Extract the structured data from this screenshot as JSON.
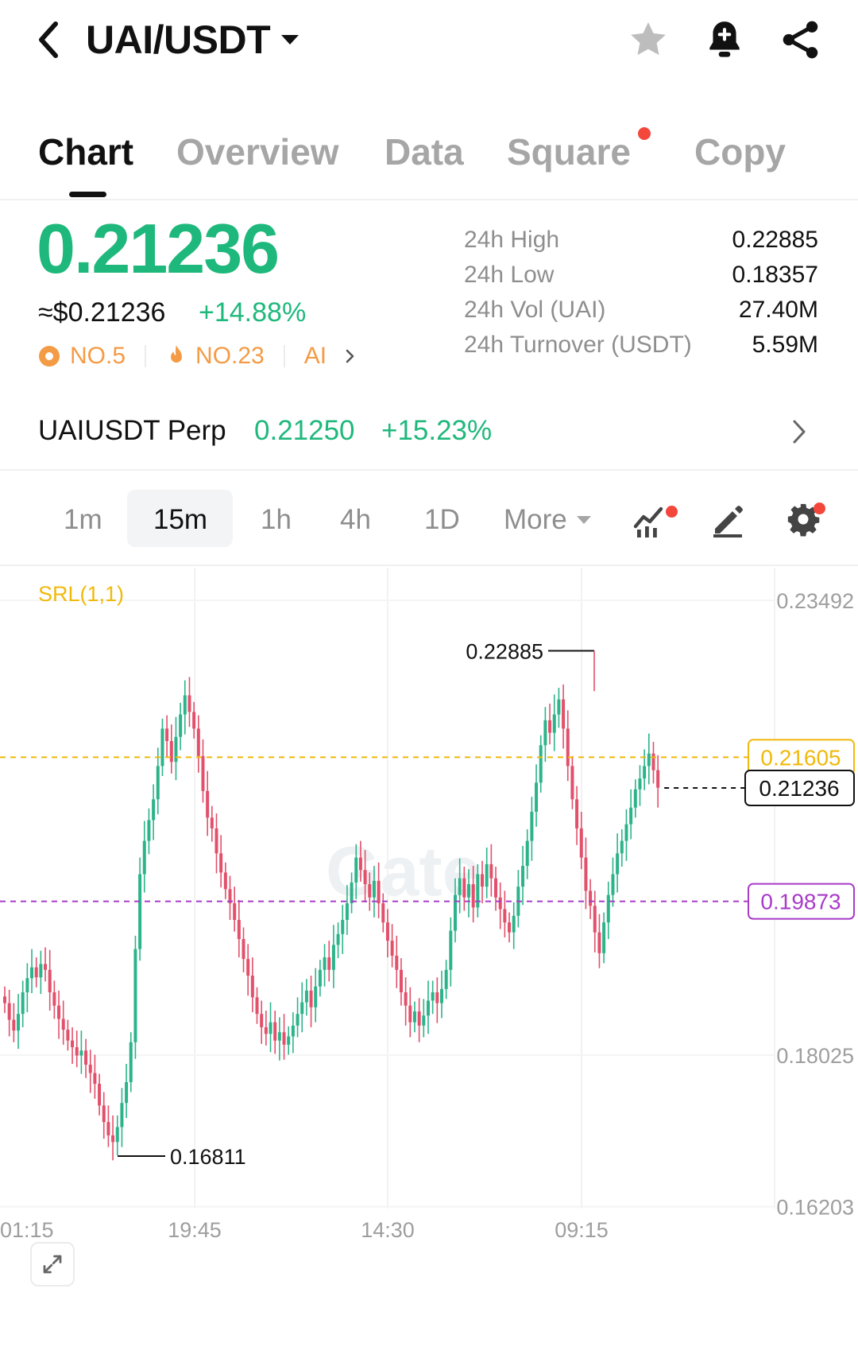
{
  "header": {
    "pair": "UAI/USDT",
    "icons": [
      "back-arrow-icon",
      "star-icon",
      "bell-plus-icon",
      "share-icon"
    ]
  },
  "tabs": [
    {
      "label": "Chart",
      "active": true
    },
    {
      "label": "Overview"
    },
    {
      "label": "Data"
    },
    {
      "label": "Square",
      "badge": true
    },
    {
      "label": "Copy"
    }
  ],
  "ticker": {
    "last_price": "0.21236",
    "usd_price": "≈$0.21236",
    "change": "+14.88%",
    "rank_1": "NO.5",
    "rank_2": "NO.23",
    "tag": "AI",
    "color_up": "#1fb87c",
    "color_down": "#e14a66",
    "color_rank": "#f49b45"
  },
  "stats": [
    {
      "label": "24h High",
      "value": "0.22885"
    },
    {
      "label": "24h Low",
      "value": "0.18357"
    },
    {
      "label": "24h Vol (UAI)",
      "value": "27.40M"
    },
    {
      "label": "24h Turnover (USDT)",
      "value": "5.59M"
    }
  ],
  "perp": {
    "name": "UAIUSDT Perp",
    "price": "0.21250",
    "change": "+15.23%"
  },
  "timeframes": {
    "options": [
      "1m",
      "15m",
      "1h",
      "4h",
      "1D"
    ],
    "active": "15m",
    "more_label": "More"
  },
  "chart_data": {
    "type": "candlestick",
    "indicator": "SRL(1,1)",
    "y_ticks": [
      "0.23492",
      "0.18025",
      "0.16203"
    ],
    "x_ticks": [
      "01:15",
      "19:45",
      "14:30",
      "09:15"
    ],
    "ylim": [
      0.16203,
      0.23492
    ],
    "high_label": "0.22885",
    "low_label": "0.16811",
    "srl_upper": "0.21605",
    "srl_lower": "0.19873",
    "current_price": "0.21236",
    "watermark": "Gate",
    "colors": {
      "up": "#2db38a",
      "down": "#e2506b",
      "srl_upper": "#f0b90b",
      "srl_lower": "#a93bc9"
    },
    "close_series": [
      0.1865,
      0.1845,
      0.1832,
      0.1852,
      0.1878,
      0.1895,
      0.1908,
      0.1896,
      0.1912,
      0.1905,
      0.1878,
      0.1862,
      0.1846,
      0.1833,
      0.182,
      0.1812,
      0.1802,
      0.1808,
      0.1791,
      0.1781,
      0.1768,
      0.1742,
      0.1722,
      0.1706,
      0.1698,
      0.1716,
      0.1745,
      0.177,
      0.1818,
      0.193,
      0.202,
      0.206,
      0.2085,
      0.211,
      0.215,
      0.2195,
      0.218,
      0.2155,
      0.2185,
      0.2212,
      0.2235,
      0.2215,
      0.2195,
      0.2162,
      0.212,
      0.2088,
      0.2075,
      0.2045,
      0.2022,
      0.2002,
      0.1985,
      0.1965,
      0.1942,
      0.1918,
      0.1898,
      0.1872,
      0.1852,
      0.1836,
      0.1828,
      0.1842,
      0.182,
      0.183,
      0.1815,
      0.1825,
      0.1838,
      0.1852,
      0.1866,
      0.188,
      0.186,
      0.1885,
      0.1905,
      0.192,
      0.1905,
      0.1935,
      0.1948,
      0.1965,
      0.1985,
      0.201,
      0.204,
      0.2025,
      0.2008,
      0.1992,
      0.2012,
      0.1985,
      0.1962,
      0.194,
      0.1922,
      0.1905,
      0.1878,
      0.1862,
      0.1842,
      0.1855,
      0.1838,
      0.185,
      0.1868,
      0.1878,
      0.1865,
      0.1882,
      0.1905,
      0.1952,
      0.1995,
      0.2015,
      0.1992,
      0.2008,
      0.198,
      0.202,
      0.2005,
      0.2032,
      0.2015,
      0.1992,
      0.1978,
      0.1962,
      0.195,
      0.197,
      0.2005,
      0.203,
      0.206,
      0.2095,
      0.213,
      0.2175,
      0.2205,
      0.219,
      0.2212,
      0.223,
      0.2195,
      0.215,
      0.211,
      0.2075,
      0.204,
      0.2,
      0.1982,
      0.195,
      0.1925,
      0.1962,
      0.1995,
      0.202,
      0.2045,
      0.206,
      0.208,
      0.21,
      0.2122,
      0.2135,
      0.215,
      0.2165,
      0.2145,
      0.2124
    ]
  }
}
